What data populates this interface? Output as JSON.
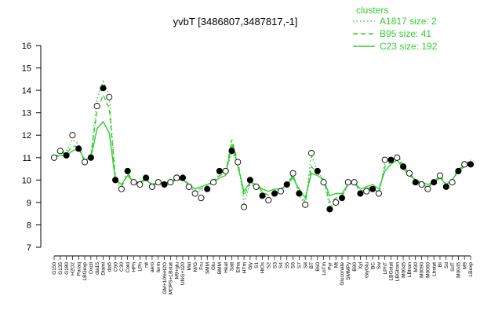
{
  "chart_data": {
    "type": "line",
    "title": "yvbT [3486807,3487817,-1]",
    "xlabel": "",
    "ylabel": "",
    "ylim": [
      7,
      16
    ],
    "yticks": [
      7,
      8,
      9,
      10,
      11,
      12,
      13,
      14,
      15,
      16
    ],
    "grid": false,
    "legend": {
      "placement": "top-right",
      "title": "clusters",
      "color": "#33cc33",
      "entries": [
        {
          "label": "A1817 size: 2",
          "style": "dotted"
        },
        {
          "label": "B95 size: 41",
          "style": "dashed"
        },
        {
          "label": "C23 size: 192",
          "style": "solid"
        }
      ]
    },
    "categories": [
      "G150",
      "G135",
      "G180",
      "H2O2",
      "Paraq",
      "LBGexp",
      "Oxctl",
      "dia15",
      "Diami",
      "dia5",
      "C90",
      "C30",
      "Cold",
      "HPh",
      "LPh",
      "nit",
      "aero",
      "ferm",
      "GM+10%H2O",
      "MOPS+LBstat",
      "M9+glu",
      "UNG+120",
      "Mal",
      "M/G",
      "Fru",
      "SMM",
      "Glu",
      "BMM",
      "Heat",
      "Salt",
      "Etha",
      "HTm",
      "Gly",
      "S1",
      "HiOs",
      "S2",
      "S3",
      "S4",
      "S5",
      "S6",
      "S7",
      "S8",
      "BT",
      "B60",
      "LoTm",
      "Pyr",
      "Mt",
      "Gluconate",
      "SMMPy",
      "B90",
      "Xyl",
      "GlyGlu",
      "BC",
      "Sw",
      "LPhT",
      "LBGstat",
      "LBGtran",
      "M0045",
      "LBtran",
      "M30",
      "M0090",
      "M0060",
      "Lbstat",
      "BI",
      "Sd",
      "SdT",
      "M0045b",
      "M9",
      "LBexp"
    ],
    "categories_display": [
      "G150",
      "G135",
      "G180",
      "H2O2",
      "Paraq",
      "LBGexp",
      "Oxctl",
      "dia15",
      "Diami",
      "dia5",
      "C90",
      "C30",
      "Cold",
      "HPh",
      "LPh",
      "nit",
      "aero",
      "ferm",
      "GM+10%H2O",
      "MOPS+LBstat",
      "M9+glu",
      "UNG+120",
      "Mal",
      "M/G",
      "Fru",
      "SMM",
      "Glu",
      "BMM",
      "Heat",
      "Salt",
      "Etha",
      "HTm",
      "Gly",
      "S1",
      "HiOs",
      "S2",
      "S3",
      "S4",
      "S5",
      "S6",
      "S7",
      "S8",
      "BT",
      "B60",
      "LoTm",
      "Pyr",
      "Mt",
      "Gluconate",
      "SMMPy",
      "B90",
      "Xyl",
      "GlyGlu",
      "BC",
      "Sw",
      "LPhT",
      "LBGstat",
      "LBGtran",
      "M0045",
      "LBtran",
      "M30",
      "M0090",
      "M0060",
      "Lbstat",
      "BI",
      "Sd",
      "SdT",
      "M0045",
      "M9",
      "LBexp"
    ],
    "series": [
      {
        "name": "C23 size: 192",
        "style": "solid",
        "color": "#33cc33",
        "values": [
          11.0,
          11.1,
          11.1,
          11.3,
          11.4,
          10.9,
          11.0,
          12.3,
          12.6,
          12.1,
          10.0,
          9.8,
          10.2,
          9.9,
          9.9,
          10.0,
          9.8,
          9.9,
          9.9,
          9.9,
          10.0,
          10.0,
          9.8,
          9.6,
          9.7,
          9.8,
          9.9,
          10.1,
          10.2,
          11.6,
          10.6,
          9.5,
          9.9,
          9.8,
          9.6,
          9.5,
          9.6,
          9.6,
          9.8,
          10.1,
          9.6,
          9.2,
          10.3,
          10.2,
          10.0,
          9.3,
          9.4,
          9.4,
          9.8,
          9.9,
          9.6,
          9.7,
          9.8,
          9.6,
          10.4,
          10.7,
          10.9,
          10.5,
          10.2,
          10.0,
          9.9,
          9.8,
          9.9,
          10.1,
          9.8,
          10.0,
          10.4,
          10.6,
          10.8
        ]
      },
      {
        "name": "B95 size: 41",
        "style": "dashed",
        "color": "#33cc33",
        "values": [
          11.0,
          11.2,
          11.2,
          11.5,
          11.5,
          10.8,
          11.1,
          13.1,
          13.8,
          13.2,
          10.1,
          9.7,
          10.3,
          9.9,
          9.9,
          10.1,
          9.8,
          9.9,
          9.9,
          9.9,
          10.1,
          10.1,
          9.8,
          9.6,
          9.6,
          9.8,
          9.9,
          10.2,
          10.3,
          11.8,
          10.8,
          9.3,
          9.9,
          9.8,
          9.5,
          9.3,
          9.5,
          9.6,
          9.8,
          10.2,
          9.5,
          9.0,
          10.6,
          10.3,
          10.0,
          9.0,
          9.2,
          9.3,
          9.8,
          9.9,
          9.5,
          9.6,
          9.7,
          9.4,
          10.6,
          10.8,
          11.0,
          10.6,
          10.3,
          10.0,
          9.8,
          9.7,
          9.9,
          10.2,
          9.8,
          10.0,
          10.5,
          10.6,
          10.8
        ]
      },
      {
        "name": "A1817 size: 2",
        "style": "dotted",
        "color": "#33cc33",
        "values": [
          11.0,
          11.2,
          11.3,
          11.8,
          11.6,
          10.8,
          11.1,
          13.6,
          14.4,
          13.8,
          10.0,
          9.6,
          10.4,
          9.8,
          9.9,
          10.1,
          9.7,
          9.9,
          9.8,
          9.9,
          10.1,
          10.1,
          9.7,
          9.5,
          9.5,
          9.7,
          9.9,
          10.3,
          10.4,
          11.2,
          10.9,
          9.0,
          9.8,
          9.7,
          9.4,
          9.1,
          9.4,
          9.5,
          9.8,
          10.3,
          9.3,
          8.9,
          11.1,
          10.4,
          10.0,
          8.8,
          9.0,
          9.2,
          9.9,
          9.9,
          9.4,
          9.5,
          9.6,
          9.3,
          10.8,
          10.9,
          11.1,
          10.7,
          10.3,
          10.0,
          9.7,
          9.6,
          9.9,
          10.2,
          9.7,
          10.0,
          10.5,
          10.7,
          10.9
        ]
      }
    ],
    "points": {
      "name": "yvbT",
      "values": [
        11.0,
        11.3,
        11.1,
        12.0,
        11.4,
        10.8,
        11.0,
        13.3,
        14.1,
        13.7,
        10.0,
        9.6,
        10.4,
        9.9,
        9.8,
        10.1,
        9.7,
        9.9,
        9.8,
        9.9,
        10.1,
        10.1,
        9.7,
        9.4,
        9.2,
        9.6,
        9.9,
        10.4,
        10.4,
        11.3,
        10.8,
        8.8,
        10.0,
        9.7,
        9.3,
        9.1,
        9.4,
        9.5,
        9.8,
        10.3,
        9.4,
        8.9,
        11.2,
        10.4,
        9.9,
        8.7,
        9.0,
        9.2,
        9.9,
        9.9,
        9.4,
        9.5,
        9.6,
        9.4,
        10.9,
        10.9,
        11.0,
        10.6,
        10.3,
        9.9,
        9.8,
        9.6,
        9.9,
        10.2,
        9.7,
        9.9,
        10.4,
        10.7,
        10.7
      ],
      "filled": [
        false,
        false,
        true,
        false,
        true,
        false,
        true,
        false,
        true,
        false,
        true,
        false,
        true,
        false,
        false,
        true,
        false,
        false,
        true,
        false,
        false,
        true,
        false,
        false,
        false,
        true,
        false,
        true,
        false,
        true,
        false,
        false,
        true,
        false,
        true,
        false,
        true,
        false,
        true,
        false,
        true,
        false,
        false,
        true,
        false,
        true,
        false,
        true,
        false,
        false,
        true,
        false,
        true,
        false,
        false,
        true,
        false,
        true,
        false,
        true,
        false,
        false,
        true,
        false,
        true,
        false,
        true,
        false,
        true
      ]
    }
  }
}
